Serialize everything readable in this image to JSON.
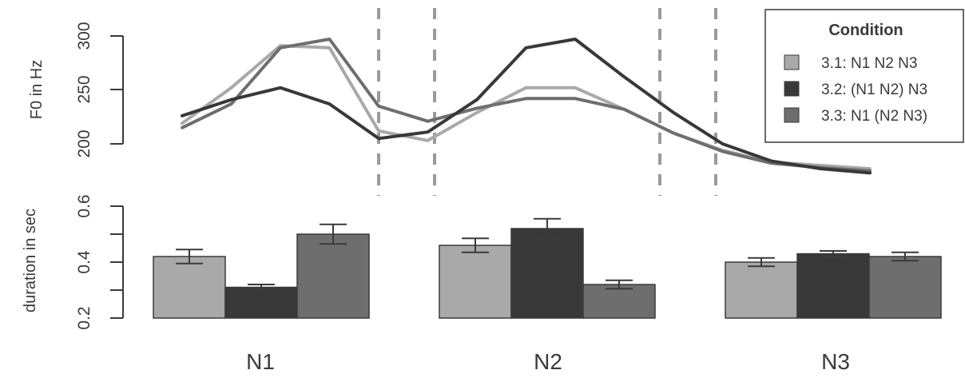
{
  "colors": {
    "3.1": "#a9a9a9",
    "3.2": "#383838",
    "3.3": "#6e6e6e",
    "axis": "#3a3a3a",
    "divider": "#9a9a9a"
  },
  "chart_data": [
    {
      "type": "line",
      "ylabel": "F0 in Hz",
      "ylim": [
        190,
        305
      ],
      "yticks": [
        200,
        250,
        300
      ],
      "grid": false,
      "x_points": 15,
      "series": [
        {
          "name": "3.1: N1  N2  N3",
          "color": "#a9a9a9",
          "values": [
            219,
            252,
            291,
            289,
            212,
            203,
            229,
            252,
            252,
            232,
            210,
            194,
            183,
            180,
            177
          ]
        },
        {
          "name": "3.2: (N1 N2) N3",
          "color": "#383838",
          "values": [
            226,
            241,
            252,
            237,
            205,
            211,
            241,
            289,
            297,
            262,
            229,
            200,
            184,
            177,
            173
          ]
        },
        {
          "name": "3.3: N1 (N2 N3)",
          "color": "#6e6e6e",
          "values": [
            215,
            237,
            289,
            297,
            235,
            221,
            233,
            242,
            242,
            232,
            210,
            193,
            182,
            178,
            175
          ]
        }
      ]
    },
    {
      "type": "bar",
      "ylabel": "duration in sec",
      "ylim": [
        0.2,
        0.6
      ],
      "yticks": [
        "0.2",
        "0.4",
        "0.6"
      ],
      "categories": [
        "N1",
        "N2",
        "N3"
      ],
      "series": [
        {
          "name": "3.1: N1  N2  N3",
          "values": [
            0.42,
            0.46,
            0.4
          ],
          "errors": [
            0.025,
            0.025,
            0.015
          ]
        },
        {
          "name": "3.2: (N1 N2) N3",
          "values": [
            0.31,
            0.52,
            0.43
          ],
          "errors": [
            0.01,
            0.035,
            0.01
          ]
        },
        {
          "name": "3.3: N1 (N2 N3)",
          "values": [
            0.5,
            0.32,
            0.42
          ],
          "errors": [
            0.035,
            0.015,
            0.015
          ]
        }
      ]
    }
  ],
  "legend": {
    "title": "Condition",
    "position": "top-right",
    "items": [
      {
        "label": "3.1: N1  N2  N3",
        "color": "#a9a9a9"
      },
      {
        "label": "3.2: (N1 N2) N3",
        "color": "#383838"
      },
      {
        "label": "3.3: N1 (N2 N3)",
        "color": "#6e6e6e"
      }
    ]
  }
}
